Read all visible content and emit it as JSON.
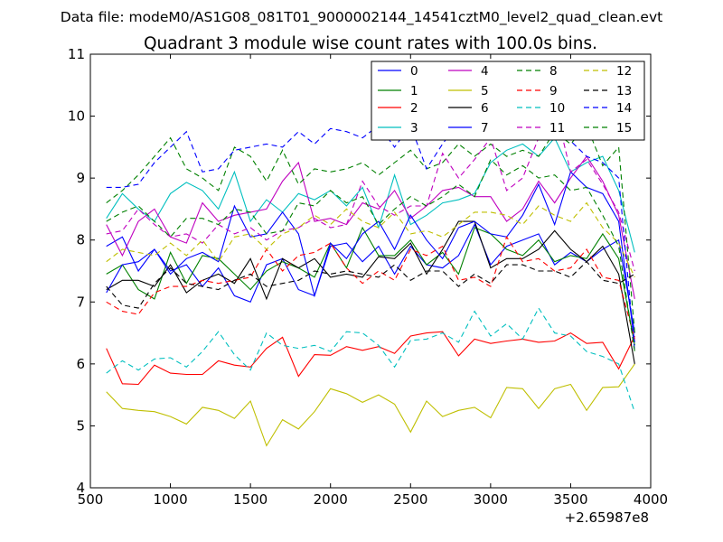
{
  "header": {
    "datafile": "Data file: modeM0/AS1G08_081T01_9000002144_14541cztM0_level2_quad_clean.evt"
  },
  "chart_data": {
    "type": "line",
    "title": "Quadrant 3 module wise count rates with 100.0s bins.",
    "xlabel": "",
    "ylabel": "",
    "x_offset_label": "+2.65987e8",
    "xlim": [
      500,
      4000
    ],
    "ylim": [
      4,
      11
    ],
    "xticks": [
      500,
      1000,
      1500,
      2000,
      2500,
      3000,
      3500,
      4000
    ],
    "yticks": [
      4,
      5,
      6,
      7,
      8,
      9,
      10,
      11
    ],
    "xtick_labels": [
      "500",
      "1000",
      "1500",
      "2000",
      "2500",
      "3000",
      "3500",
      "4000"
    ],
    "ytick_labels": [
      "4",
      "5",
      "6",
      "7",
      "8",
      "9",
      "10",
      "11"
    ],
    "grid": false,
    "legend_position": "top-right",
    "legend_columns": 4,
    "x": [
      600,
      700,
      800,
      900,
      1000,
      1100,
      1200,
      1300,
      1400,
      1500,
      1600,
      1700,
      1800,
      1900,
      2000,
      2100,
      2200,
      2300,
      2400,
      2500,
      2600,
      2700,
      2800,
      2900,
      3000,
      3100,
      3200,
      3300,
      3400,
      3500,
      3600,
      3700,
      3800,
      3900
    ],
    "series": [
      {
        "name": "0",
        "color": "#0000ff",
        "dash": "solid",
        "values": [
          7.9,
          8.05,
          7.5,
          7.85,
          7.5,
          7.6,
          7.25,
          7.55,
          7.1,
          7.0,
          7.6,
          7.7,
          7.2,
          7.1,
          7.9,
          7.95,
          7.65,
          7.9,
          7.45,
          7.9,
          7.6,
          7.55,
          7.75,
          8.25,
          7.6,
          7.9,
          8.0,
          8.1,
          7.6,
          7.8,
          7.65,
          7.85,
          8.0,
          6.5
        ]
      },
      {
        "name": "1",
        "color": "#008000",
        "dash": "solid",
        "values": [
          7.45,
          7.6,
          7.2,
          7.05,
          7.8,
          7.3,
          7.75,
          7.7,
          7.45,
          7.2,
          7.5,
          7.65,
          7.55,
          7.4,
          7.95,
          7.55,
          8.2,
          7.75,
          7.75,
          8.0,
          7.6,
          7.8,
          7.45,
          8.2,
          8.1,
          7.85,
          7.75,
          8.0,
          7.65,
          7.75,
          7.7,
          8.1,
          7.7,
          6.3
        ]
      },
      {
        "name": "2",
        "color": "#ff0000",
        "dash": "solid",
        "values": [
          6.25,
          5.68,
          5.67,
          5.98,
          5.85,
          5.83,
          5.83,
          6.05,
          5.98,
          5.95,
          6.25,
          6.43,
          5.8,
          6.15,
          6.14,
          6.28,
          6.22,
          6.28,
          6.17,
          6.45,
          6.5,
          6.52,
          6.13,
          6.4,
          6.33,
          6.37,
          6.4,
          6.35,
          6.37,
          6.5,
          6.33,
          6.35,
          5.92,
          6.45
        ]
      },
      {
        "name": "3",
        "color": "#00bfbf",
        "dash": "solid",
        "values": [
          8.35,
          8.75,
          8.5,
          8.3,
          8.75,
          8.93,
          8.8,
          8.5,
          9.1,
          8.3,
          8.65,
          8.45,
          8.75,
          8.65,
          8.8,
          8.55,
          8.85,
          8.2,
          9.05,
          8.25,
          8.4,
          8.6,
          8.65,
          8.75,
          9.25,
          9.45,
          9.55,
          9.35,
          9.65,
          9.1,
          9.25,
          9.35,
          8.8,
          7.8
        ]
      },
      {
        "name": "4",
        "color": "#bf00bf",
        "dash": "solid",
        "values": [
          8.25,
          7.75,
          8.3,
          8.5,
          8.05,
          7.95,
          8.6,
          8.3,
          8.4,
          8.45,
          8.5,
          8.95,
          9.25,
          8.3,
          8.35,
          8.25,
          8.6,
          8.5,
          8.8,
          8.35,
          8.55,
          8.8,
          8.85,
          8.7,
          8.7,
          8.3,
          8.5,
          8.95,
          8.6,
          9.0,
          9.35,
          8.95,
          8.4,
          7.05
        ]
      },
      {
        "name": "5",
        "color": "#bfbf00",
        "dash": "solid",
        "values": [
          5.55,
          5.28,
          5.25,
          5.23,
          5.15,
          5.03,
          5.3,
          5.25,
          5.12,
          5.4,
          4.68,
          5.1,
          4.95,
          5.23,
          5.6,
          5.52,
          5.38,
          5.5,
          5.35,
          4.9,
          5.4,
          5.15,
          5.25,
          5.3,
          5.13,
          5.62,
          5.6,
          5.28,
          5.6,
          5.67,
          5.25,
          5.62,
          5.63,
          6.0
        ]
      },
      {
        "name": "6",
        "color": "#000000",
        "dash": "solid",
        "values": [
          7.2,
          7.35,
          7.35,
          7.25,
          7.6,
          7.15,
          7.35,
          7.45,
          7.3,
          7.7,
          7.05,
          7.7,
          7.55,
          7.7,
          7.4,
          7.45,
          7.4,
          7.73,
          7.7,
          7.95,
          7.45,
          7.85,
          8.3,
          8.3,
          7.55,
          7.7,
          7.7,
          7.85,
          8.15,
          7.85,
          7.65,
          7.9,
          7.45,
          6.0
        ]
      },
      {
        "name": "7",
        "color": "#0000ff",
        "dash": "solid",
        "values": [
          7.15,
          7.6,
          7.65,
          7.85,
          7.45,
          7.7,
          7.8,
          7.65,
          8.55,
          8.05,
          8.1,
          8.45,
          8.1,
          7.1,
          7.95,
          7.7,
          8.1,
          8.3,
          7.85,
          8.4,
          8.0,
          7.7,
          8.2,
          8.3,
          8.1,
          8.05,
          8.4,
          8.9,
          8.25,
          9.1,
          8.85,
          8.75,
          8.3,
          6.35
        ]
      },
      {
        "name": "8",
        "color": "#008000",
        "dash": "dashed",
        "values": [
          8.6,
          8.8,
          9.05,
          9.35,
          9.65,
          9.15,
          9.0,
          8.8,
          9.5,
          9.35,
          8.95,
          9.45,
          8.9,
          9.15,
          9.1,
          9.15,
          9.25,
          9.05,
          9.25,
          9.45,
          9.15,
          9.25,
          9.55,
          9.35,
          9.55,
          9.35,
          9.45,
          9.35,
          9.75,
          9.55,
          9.85,
          9.2,
          9.5,
          6.5
        ]
      },
      {
        "name": "9",
        "color": "#ff0000",
        "dash": "dashed",
        "values": [
          7.0,
          6.85,
          6.8,
          7.15,
          7.25,
          7.25,
          7.35,
          7.3,
          7.35,
          7.4,
          7.85,
          7.5,
          7.75,
          7.8,
          7.95,
          7.55,
          7.3,
          7.5,
          7.35,
          7.85,
          7.75,
          7.9,
          7.35,
          7.4,
          7.25,
          8.05,
          7.65,
          7.7,
          7.5,
          7.55,
          7.85,
          7.4,
          7.35,
          6.4
        ]
      },
      {
        "name": "10",
        "color": "#00bfbf",
        "dash": "dashed",
        "values": [
          5.85,
          6.05,
          5.9,
          6.08,
          6.1,
          5.95,
          6.2,
          6.52,
          6.15,
          5.9,
          6.5,
          6.3,
          6.25,
          6.3,
          6.2,
          6.52,
          6.5,
          6.3,
          5.95,
          6.38,
          6.4,
          6.5,
          6.35,
          6.85,
          6.45,
          6.65,
          6.4,
          6.9,
          6.5,
          6.45,
          6.2,
          6.12,
          6.0,
          5.22
        ]
      },
      {
        "name": "11",
        "color": "#bf00bf",
        "dash": "dashed",
        "values": [
          8.1,
          8.15,
          8.5,
          8.25,
          8.05,
          8.1,
          7.95,
          8.25,
          8.1,
          8.2,
          8.0,
          8.15,
          8.2,
          8.35,
          8.2,
          8.25,
          8.95,
          8.55,
          8.4,
          8.55,
          8.55,
          9.4,
          9.0,
          9.3,
          9.65,
          8.8,
          9.0,
          9.65,
          10.2,
          9.1,
          9.3,
          8.9,
          8.45,
          7.5
        ]
      },
      {
        "name": "12",
        "color": "#bfbf00",
        "dash": "dashed",
        "values": [
          7.65,
          7.85,
          7.8,
          7.75,
          7.95,
          7.75,
          8.0,
          7.65,
          8.05,
          8.1,
          7.85,
          8.1,
          8.2,
          8.4,
          8.25,
          8.5,
          8.3,
          8.2,
          8.45,
          8.1,
          8.15,
          8.05,
          8.25,
          8.45,
          8.45,
          8.4,
          8.25,
          8.55,
          8.4,
          8.3,
          8.6,
          8.2,
          7.95,
          7.4
        ]
      },
      {
        "name": "13",
        "color": "#000000",
        "dash": "dashed",
        "values": [
          7.25,
          6.95,
          6.9,
          7.3,
          7.55,
          7.3,
          7.25,
          7.2,
          7.35,
          7.45,
          7.25,
          7.3,
          7.35,
          7.5,
          7.45,
          7.5,
          7.45,
          7.4,
          7.6,
          7.35,
          7.5,
          7.5,
          7.25,
          7.45,
          7.3,
          7.6,
          7.6,
          7.5,
          7.5,
          7.4,
          7.65,
          7.35,
          7.3,
          7.45
        ]
      },
      {
        "name": "14",
        "color": "#0000ff",
        "dash": "dashed",
        "values": [
          8.85,
          8.85,
          8.9,
          9.25,
          9.5,
          9.75,
          9.1,
          9.15,
          9.45,
          9.5,
          9.55,
          9.5,
          9.75,
          9.55,
          9.8,
          9.75,
          9.65,
          9.85,
          9.5,
          9.85,
          9.15,
          9.55,
          9.9,
          10.2,
          9.95,
          10.1,
          9.95,
          10.05,
          9.95,
          9.6,
          9.35,
          9.25,
          9.0,
          6.2
        ]
      },
      {
        "name": "15",
        "color": "#008000",
        "dash": "dashed",
        "values": [
          8.3,
          8.45,
          8.55,
          8.3,
          8.05,
          8.35,
          8.35,
          8.25,
          8.5,
          8.45,
          8.1,
          8.15,
          8.6,
          8.55,
          8.8,
          8.6,
          8.7,
          8.25,
          8.5,
          8.7,
          8.55,
          8.7,
          8.9,
          8.7,
          9.3,
          9.05,
          9.2,
          9.0,
          9.05,
          8.8,
          8.85,
          8.4,
          7.9,
          6.2
        ]
      }
    ]
  }
}
